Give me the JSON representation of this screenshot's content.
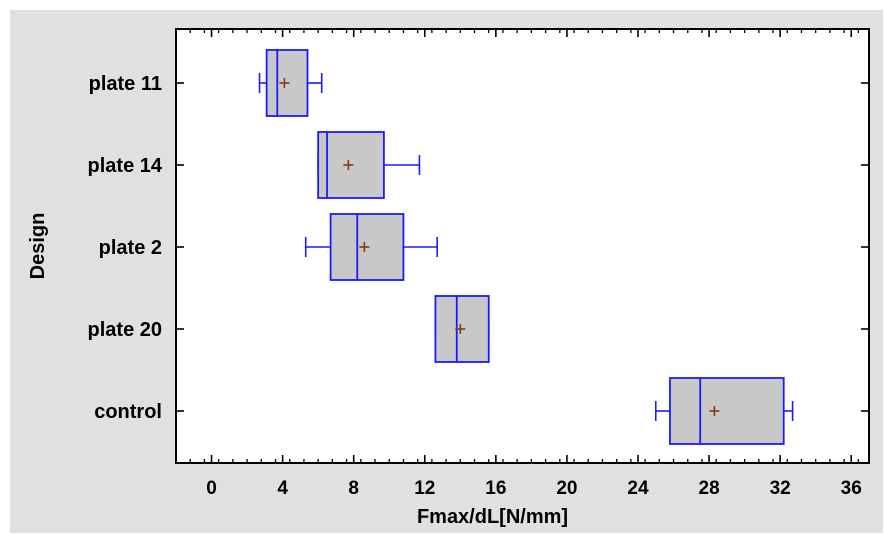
{
  "colors": {
    "panel_background": "#e0e0e0",
    "plot_background": "#ffffff",
    "box_fill": "#c8c8c8",
    "box_stroke": "#1a1aff",
    "mean_marker": "#8b3a0a",
    "axis": "#000000"
  },
  "chart_data": {
    "type": "boxplot",
    "orientation": "horizontal",
    "title": "",
    "xlabel": "Fmax/dL[N/mm]",
    "ylabel": "Design",
    "xlim": [
      -2,
      37
    ],
    "xticks": [
      0,
      4,
      8,
      12,
      16,
      20,
      24,
      28,
      32,
      36
    ],
    "grid": false,
    "categories": [
      "plate 11",
      "plate 14",
      "plate 2",
      "plate 20",
      "control"
    ],
    "boxes": [
      {
        "category": "plate 11",
        "whisker_low": 2.7,
        "q1": 3.1,
        "median": 3.7,
        "q3": 5.4,
        "whisker_high": 6.2,
        "mean": 4.1
      },
      {
        "category": "plate 14",
        "whisker_low": 6.0,
        "q1": 6.0,
        "median": 6.5,
        "q3": 9.7,
        "whisker_high": 11.7,
        "mean": 7.7
      },
      {
        "category": "plate 2",
        "whisker_low": 5.3,
        "q1": 6.7,
        "median": 8.2,
        "q3": 10.8,
        "whisker_high": 12.7,
        "mean": 8.6
      },
      {
        "category": "plate 20",
        "whisker_low": 12.6,
        "q1": 12.6,
        "median": 13.8,
        "q3": 15.6,
        "whisker_high": 15.6,
        "mean": 14.0
      },
      {
        "category": "control",
        "whisker_low": 25.0,
        "q1": 25.8,
        "median": 27.5,
        "q3": 32.2,
        "whisker_high": 32.7,
        "mean": 28.3
      }
    ]
  }
}
